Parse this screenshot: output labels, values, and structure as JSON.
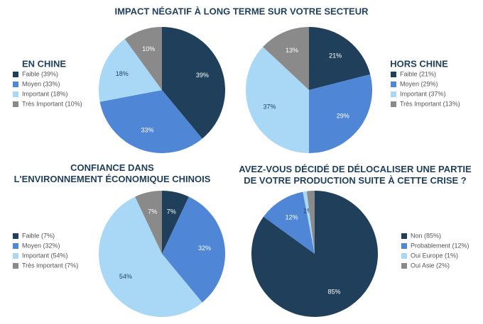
{
  "title": "IMPACT NÉGATIF À LONG TERME SUR VOTRE SECTEUR",
  "chart_data": [
    {
      "type": "pie",
      "title": "EN CHINE",
      "categories": [
        "Faible (39%)",
        "Moyen (33%)",
        "Important (18%)",
        "Très Important (10%)"
      ],
      "values": [
        39,
        33,
        18,
        10
      ],
      "value_labels": [
        "39%",
        "33%",
        "18%",
        "10%"
      ],
      "colors": [
        "#1f3f5b",
        "#4f86d6",
        "#a8d8f5",
        "#8a8a8a"
      ]
    },
    {
      "type": "pie",
      "title": "HORS CHINE",
      "categories": [
        "Faible (21%)",
        "Moyen (29%)",
        "Important (37%)",
        "Très Important (13%)"
      ],
      "values": [
        21,
        29,
        37,
        13
      ],
      "value_labels": [
        "21%",
        "29%",
        "37%",
        "13%"
      ],
      "colors": [
        "#1f3f5b",
        "#4f86d6",
        "#a8d8f5",
        "#8a8a8a"
      ]
    },
    {
      "type": "pie",
      "title": "CONFIANCE DANS\nL'ENVIRONNEMENT ÉCONOMIQUE CHINOIS",
      "categories": [
        "Faible (7%)",
        "Moyen (32%)",
        "Important (54%)",
        "Très important (7%)"
      ],
      "values": [
        7,
        32,
        54,
        7
      ],
      "value_labels": [
        "7%",
        "32%",
        "54%",
        "7%"
      ],
      "colors": [
        "#1f3f5b",
        "#4f86d6",
        "#a8d8f5",
        "#8a8a8a"
      ]
    },
    {
      "type": "pie",
      "title": "AVEZ-VOUS DÉCIDÉ DE DÉLOCALISER UNE PARTIE\nDE VOTRE PRODUCTION SUITE À CETTE CRISE ?",
      "categories": [
        "Non (85%)",
        "Probablement (12%)",
        "Oui Europe (1%)",
        "Oui Asie (2%)"
      ],
      "values": [
        85,
        12,
        1,
        2
      ],
      "value_labels": [
        "85%",
        "12%",
        "1%",
        null
      ],
      "colors": [
        "#1f3f5b",
        "#4f86d6",
        "#a8d8f5",
        "#8a8a8a"
      ]
    }
  ]
}
